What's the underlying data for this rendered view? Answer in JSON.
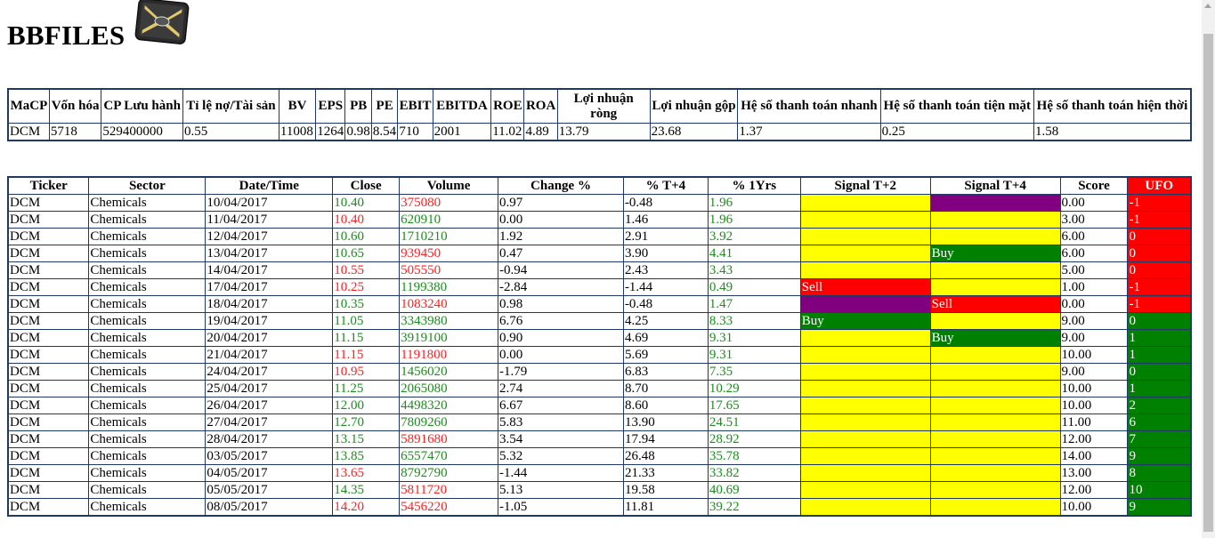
{
  "site": {
    "title": "BBFILES"
  },
  "info_table": {
    "headers": [
      "MaCP",
      "Vốn hóa",
      "CP Lưu hành",
      "Tỉ lệ nợ/Tài sản",
      "BV",
      "EPS",
      "PB",
      "PE",
      "EBIT",
      "EBITDA",
      "ROE",
      "ROA",
      "Lợi nhuận ròng",
      "Lợi nhuận gộp",
      "Hệ số thanh toán nhanh",
      "Hệ số thanh toán tiện mặt",
      "Hệ số thanh toán hiện thời"
    ],
    "row": [
      "DCM",
      "5718",
      "529400000",
      "0.55",
      "11008",
      "1264",
      "0.98",
      "8.54",
      "710",
      "2001",
      "11.02",
      "4.89",
      "13.79",
      "23.68",
      "1.37",
      "0.25",
      "1.58"
    ]
  },
  "data_table": {
    "headers": [
      "Ticker",
      "Sector",
      "Date/Time",
      "Close",
      "Volume",
      "Change %",
      "% T+4",
      "% 1Yrs",
      "Signal T+2",
      "Signal T+4",
      "Score",
      "UFO"
    ],
    "colors": {
      "up": "#1c8c1c",
      "down": "#ff1f1f",
      "yellow": "#ffff00",
      "purple": "#800080",
      "green": "#008000",
      "red": "#ff0000"
    },
    "rows": [
      {
        "ticker": "DCM",
        "sector": "Chemicals",
        "date": "10/04/2017",
        "close": "10.40",
        "close_dir": "up",
        "volume": "375080",
        "volume_dir": "down",
        "change": "0.97",
        "t4": "-0.48",
        "yr": "1.96",
        "s2": "",
        "s2_color": "yellow",
        "s4": "",
        "s4_color": "purple",
        "score": "0.00",
        "ufo": "-1",
        "ufo_color": "red"
      },
      {
        "ticker": "DCM",
        "sector": "Chemicals",
        "date": "11/04/2017",
        "close": "10.40",
        "close_dir": "down",
        "volume": "620910",
        "volume_dir": "up",
        "change": "0.00",
        "t4": "1.46",
        "yr": "1.96",
        "s2": "",
        "s2_color": "yellow",
        "s4": "",
        "s4_color": "yellow",
        "score": "3.00",
        "ufo": "-1",
        "ufo_color": "red"
      },
      {
        "ticker": "DCM",
        "sector": "Chemicals",
        "date": "12/04/2017",
        "close": "10.60",
        "close_dir": "up",
        "volume": "1710210",
        "volume_dir": "up",
        "change": "1.92",
        "t4": "2.91",
        "yr": "3.92",
        "s2": "",
        "s2_color": "yellow",
        "s4": "",
        "s4_color": "yellow",
        "score": "6.00",
        "ufo": "0",
        "ufo_color": "red"
      },
      {
        "ticker": "DCM",
        "sector": "Chemicals",
        "date": "13/04/2017",
        "close": "10.65",
        "close_dir": "up",
        "volume": "939450",
        "volume_dir": "down",
        "change": "0.47",
        "t4": "3.90",
        "yr": "4.41",
        "s2": "",
        "s2_color": "yellow",
        "s4": "Buy",
        "s4_color": "green",
        "score": "6.00",
        "ufo": "0",
        "ufo_color": "red"
      },
      {
        "ticker": "DCM",
        "sector": "Chemicals",
        "date": "14/04/2017",
        "close": "10.55",
        "close_dir": "down",
        "volume": "505550",
        "volume_dir": "down",
        "change": "-0.94",
        "t4": "2.43",
        "yr": "3.43",
        "s2": "",
        "s2_color": "yellow",
        "s4": "",
        "s4_color": "yellow",
        "score": "5.00",
        "ufo": "0",
        "ufo_color": "red"
      },
      {
        "ticker": "DCM",
        "sector": "Chemicals",
        "date": "17/04/2017",
        "close": "10.25",
        "close_dir": "down",
        "volume": "1199380",
        "volume_dir": "up",
        "change": "-2.84",
        "t4": "-1.44",
        "yr": "0.49",
        "s2": "Sell",
        "s2_color": "red",
        "s4": "",
        "s4_color": "yellow",
        "score": "1.00",
        "ufo": "-1",
        "ufo_color": "red"
      },
      {
        "ticker": "DCM",
        "sector": "Chemicals",
        "date": "18/04/2017",
        "close": "10.35",
        "close_dir": "up",
        "volume": "1083240",
        "volume_dir": "down",
        "change": "0.98",
        "t4": "-0.48",
        "yr": "1.47",
        "s2": "",
        "s2_color": "purple",
        "s4": "Sell",
        "s4_color": "red",
        "score": "0.00",
        "ufo": "-1",
        "ufo_color": "red"
      },
      {
        "ticker": "DCM",
        "sector": "Chemicals",
        "date": "19/04/2017",
        "close": "11.05",
        "close_dir": "up",
        "volume": "3343980",
        "volume_dir": "up",
        "change": "6.76",
        "t4": "4.25",
        "yr": "8.33",
        "s2": "Buy",
        "s2_color": "green",
        "s4": "",
        "s4_color": "yellow",
        "score": "9.00",
        "ufo": "0",
        "ufo_color": "green"
      },
      {
        "ticker": "DCM",
        "sector": "Chemicals",
        "date": "20/04/2017",
        "close": "11.15",
        "close_dir": "up",
        "volume": "3919100",
        "volume_dir": "up",
        "change": "0.90",
        "t4": "4.69",
        "yr": "9.31",
        "s2": "",
        "s2_color": "yellow",
        "s4": "Buy",
        "s4_color": "green",
        "score": "9.00",
        "ufo": "1",
        "ufo_color": "green"
      },
      {
        "ticker": "DCM",
        "sector": "Chemicals",
        "date": "21/04/2017",
        "close": "11.15",
        "close_dir": "down",
        "volume": "1191800",
        "volume_dir": "down",
        "change": "0.00",
        "t4": "5.69",
        "yr": "9.31",
        "s2": "",
        "s2_color": "yellow",
        "s4": "",
        "s4_color": "yellow",
        "score": "10.00",
        "ufo": "1",
        "ufo_color": "green"
      },
      {
        "ticker": "DCM",
        "sector": "Chemicals",
        "date": "24/04/2017",
        "close": "10.95",
        "close_dir": "down",
        "volume": "1456020",
        "volume_dir": "up",
        "change": "-1.79",
        "t4": "6.83",
        "yr": "7.35",
        "s2": "",
        "s2_color": "yellow",
        "s4": "",
        "s4_color": "yellow",
        "score": "9.00",
        "ufo": "0",
        "ufo_color": "green"
      },
      {
        "ticker": "DCM",
        "sector": "Chemicals",
        "date": "25/04/2017",
        "close": "11.25",
        "close_dir": "up",
        "volume": "2065080",
        "volume_dir": "up",
        "change": "2.74",
        "t4": "8.70",
        "yr": "10.29",
        "s2": "",
        "s2_color": "yellow",
        "s4": "",
        "s4_color": "yellow",
        "score": "10.00",
        "ufo": "1",
        "ufo_color": "green"
      },
      {
        "ticker": "DCM",
        "sector": "Chemicals",
        "date": "26/04/2017",
        "close": "12.00",
        "close_dir": "up",
        "volume": "4498320",
        "volume_dir": "up",
        "change": "6.67",
        "t4": "8.60",
        "yr": "17.65",
        "s2": "",
        "s2_color": "yellow",
        "s4": "",
        "s4_color": "yellow",
        "score": "10.00",
        "ufo": "2",
        "ufo_color": "green"
      },
      {
        "ticker": "DCM",
        "sector": "Chemicals",
        "date": "27/04/2017",
        "close": "12.70",
        "close_dir": "up",
        "volume": "7809260",
        "volume_dir": "up",
        "change": "5.83",
        "t4": "13.90",
        "yr": "24.51",
        "s2": "",
        "s2_color": "yellow",
        "s4": "",
        "s4_color": "yellow",
        "score": "11.00",
        "ufo": "6",
        "ufo_color": "green"
      },
      {
        "ticker": "DCM",
        "sector": "Chemicals",
        "date": "28/04/2017",
        "close": "13.15",
        "close_dir": "up",
        "volume": "5891680",
        "volume_dir": "down",
        "change": "3.54",
        "t4": "17.94",
        "yr": "28.92",
        "s2": "",
        "s2_color": "yellow",
        "s4": "",
        "s4_color": "yellow",
        "score": "12.00",
        "ufo": "7",
        "ufo_color": "green"
      },
      {
        "ticker": "DCM",
        "sector": "Chemicals",
        "date": "03/05/2017",
        "close": "13.85",
        "close_dir": "up",
        "volume": "6557470",
        "volume_dir": "up",
        "change": "5.32",
        "t4": "26.48",
        "yr": "35.78",
        "s2": "",
        "s2_color": "yellow",
        "s4": "",
        "s4_color": "yellow",
        "score": "14.00",
        "ufo": "9",
        "ufo_color": "green"
      },
      {
        "ticker": "DCM",
        "sector": "Chemicals",
        "date": "04/05/2017",
        "close": "13.65",
        "close_dir": "down",
        "volume": "8792790",
        "volume_dir": "up",
        "change": "-1.44",
        "t4": "21.33",
        "yr": "33.82",
        "s2": "",
        "s2_color": "yellow",
        "s4": "",
        "s4_color": "yellow",
        "score": "13.00",
        "ufo": "8",
        "ufo_color": "green"
      },
      {
        "ticker": "DCM",
        "sector": "Chemicals",
        "date": "05/05/2017",
        "close": "14.35",
        "close_dir": "up",
        "volume": "5811720",
        "volume_dir": "down",
        "change": "5.13",
        "t4": "19.58",
        "yr": "40.69",
        "s2": "",
        "s2_color": "yellow",
        "s4": "",
        "s4_color": "yellow",
        "score": "12.00",
        "ufo": "10",
        "ufo_color": "green"
      },
      {
        "ticker": "DCM",
        "sector": "Chemicals",
        "date": "08/05/2017",
        "close": "14.20",
        "close_dir": "down",
        "volume": "5456220",
        "volume_dir": "down",
        "change": "-1.05",
        "t4": "11.81",
        "yr": "39.22",
        "s2": "",
        "s2_color": "yellow",
        "s4": "",
        "s4_color": "yellow",
        "score": "10.00",
        "ufo": "9",
        "ufo_color": "green"
      }
    ]
  }
}
